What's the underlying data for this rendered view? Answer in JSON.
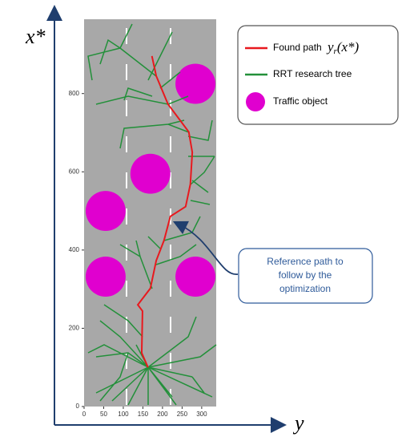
{
  "chart_data": {
    "type": "line",
    "x_label": "y",
    "y_label": "x*",
    "xlim": [
      0,
      337
    ],
    "ylim": [
      0,
      990
    ],
    "xticks": [
      0,
      50,
      100,
      150,
      200,
      250,
      300
    ],
    "yticks": [
      0,
      200,
      400,
      600,
      800
    ],
    "series": [
      {
        "name": "Found path",
        "type": "line",
        "color": "#e8191e",
        "x": [
          163,
          147,
          149,
          137,
          169,
          184,
          204,
          220,
          259,
          271,
          276,
          267,
          214,
          184,
          173
        ],
        "values": [
          100,
          137,
          244,
          260,
          302,
          373,
          425,
          486,
          511,
          568,
          650,
          702,
          773,
          845,
          896
        ]
      },
      {
        "name": "Traffic object",
        "type": "scatter",
        "color": "#e000cf",
        "x": [
          284,
          169,
          55,
          55,
          284
        ],
        "values": [
          825,
          595,
          500,
          332,
          332
        ],
        "sizes": [
          51,
          51,
          51,
          51,
          51
        ]
      }
    ],
    "tree": {
      "name": "RRT research tree",
      "color": "#23903a"
    },
    "formula": {
      "base": "y",
      "sub": "r",
      "arg": "(x*)"
    },
    "callout": [
      "Reference path to",
      "follow by the",
      "optimization"
    ]
  }
}
